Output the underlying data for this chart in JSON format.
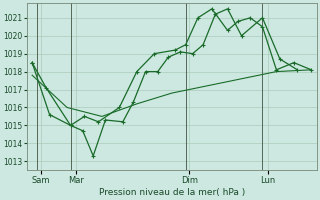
{
  "bg_color": "#cce8e0",
  "grid_color": "#aaccbb",
  "line_color_dark": "#1a6b2a",
  "line_color_mid": "#2d7a3a",
  "xlabel": "Pression niveau de la mer( hPa )",
  "ylim": [
    1012.5,
    1021.8
  ],
  "yticks": [
    1013,
    1014,
    1015,
    1016,
    1017,
    1018,
    1019,
    1020,
    1021
  ],
  "xlim": [
    -0.3,
    16.3
  ],
  "day_labels": [
    "Sam",
    "Mar",
    "Dim",
    "Lun"
  ],
  "day_positions": [
    0.5,
    2.5,
    9.0,
    13.5
  ],
  "vline_positions": [
    0.3,
    2.2,
    8.8,
    13.2
  ],
  "series1_x": [
    0.0,
    0.8,
    2.2,
    2.9,
    3.5,
    4.2,
    5.2,
    5.8,
    6.5,
    7.2,
    7.8,
    8.5,
    9.2,
    9.8,
    10.5,
    11.2,
    12.0,
    13.2,
    14.2,
    15.2
  ],
  "series1_y": [
    1018.5,
    1017.1,
    1015.0,
    1014.7,
    1013.3,
    1015.3,
    1015.2,
    1016.3,
    1018.0,
    1018.0,
    1018.8,
    1019.1,
    1019.0,
    1019.5,
    1021.2,
    1021.5,
    1020.0,
    1021.0,
    1018.7,
    1018.1
  ],
  "series2_x": [
    0.0,
    1.0,
    2.2,
    3.0,
    3.8,
    5.0,
    6.0,
    7.0,
    8.2,
    8.8,
    9.5,
    10.3,
    11.2,
    11.8,
    12.5,
    13.2,
    14.0,
    15.0,
    16.0
  ],
  "series2_y": [
    1018.5,
    1015.6,
    1015.0,
    1015.5,
    1015.2,
    1016.0,
    1018.0,
    1019.0,
    1019.2,
    1019.5,
    1021.0,
    1021.5,
    1020.3,
    1020.8,
    1021.0,
    1020.5,
    1018.1,
    1018.5,
    1018.1
  ],
  "series3_x": [
    0.0,
    2.0,
    4.0,
    6.0,
    8.0,
    10.0,
    12.0,
    14.0,
    16.0
  ],
  "series3_y": [
    1017.8,
    1016.0,
    1015.5,
    1016.2,
    1016.8,
    1017.2,
    1017.6,
    1018.0,
    1018.1
  ],
  "marker_style": "+"
}
